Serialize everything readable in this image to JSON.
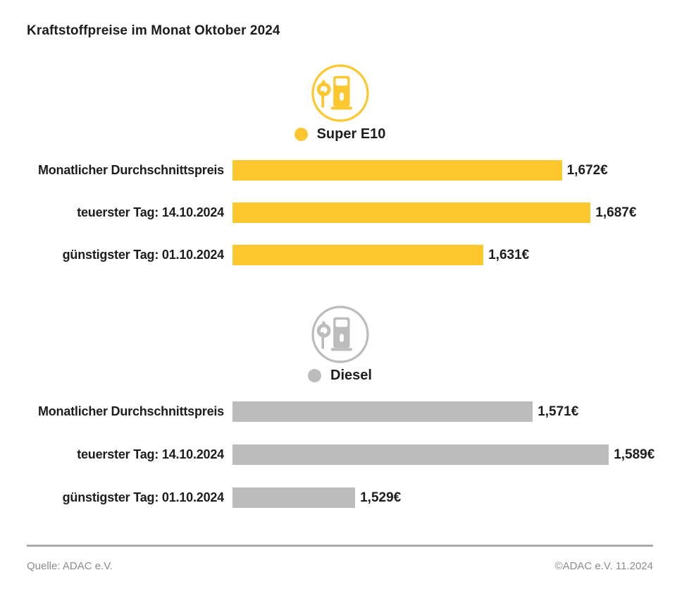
{
  "page": {
    "title": "Kraftstoffpreise im Monat Oktober 2024"
  },
  "colors": {
    "super_e10_yellow": "#FCC72F",
    "diesel_gray": "#BCBCBC",
    "text_dark": "#1D1D1B",
    "footer_text": "#8C8C8C",
    "divider": "#AAAAAA"
  },
  "chart_data": [
    {
      "type": "bar",
      "title": "Super E10",
      "icon": "fuel-pump-icon",
      "color": "#FCC72F",
      "categories": [
        "Monatlicher Durchschnittspreis",
        "teuerster Tag: 14.10.2024",
        "günstigster Tag: 01.10.2024"
      ],
      "values": [
        1.672,
        1.687,
        1.631
      ],
      "value_labels": [
        "1,672€",
        "1,687€",
        "1,631€"
      ],
      "unit": "€",
      "xlim": [
        1.5,
        1.706
      ],
      "legend_position": "top-center",
      "grid": false
    },
    {
      "type": "bar",
      "title": "Diesel",
      "icon": "fuel-pump-icon",
      "color": "#BCBCBC",
      "categories": [
        "Monatlicher Durchschnittspreis",
        "teuerster Tag: 14.10.2024",
        "günstigster Tag: 01.10.2024"
      ],
      "values": [
        1.571,
        1.589,
        1.529
      ],
      "value_labels": [
        "1,571€",
        "1,589€",
        "1,529€"
      ],
      "unit": "€",
      "xlim": [
        1.5,
        1.5933
      ],
      "legend_position": "top-center",
      "grid": false
    }
  ],
  "footer": {
    "source": "Quelle: ADAC e.V.",
    "copyright": "©ADAC e.V. 11.2024"
  }
}
